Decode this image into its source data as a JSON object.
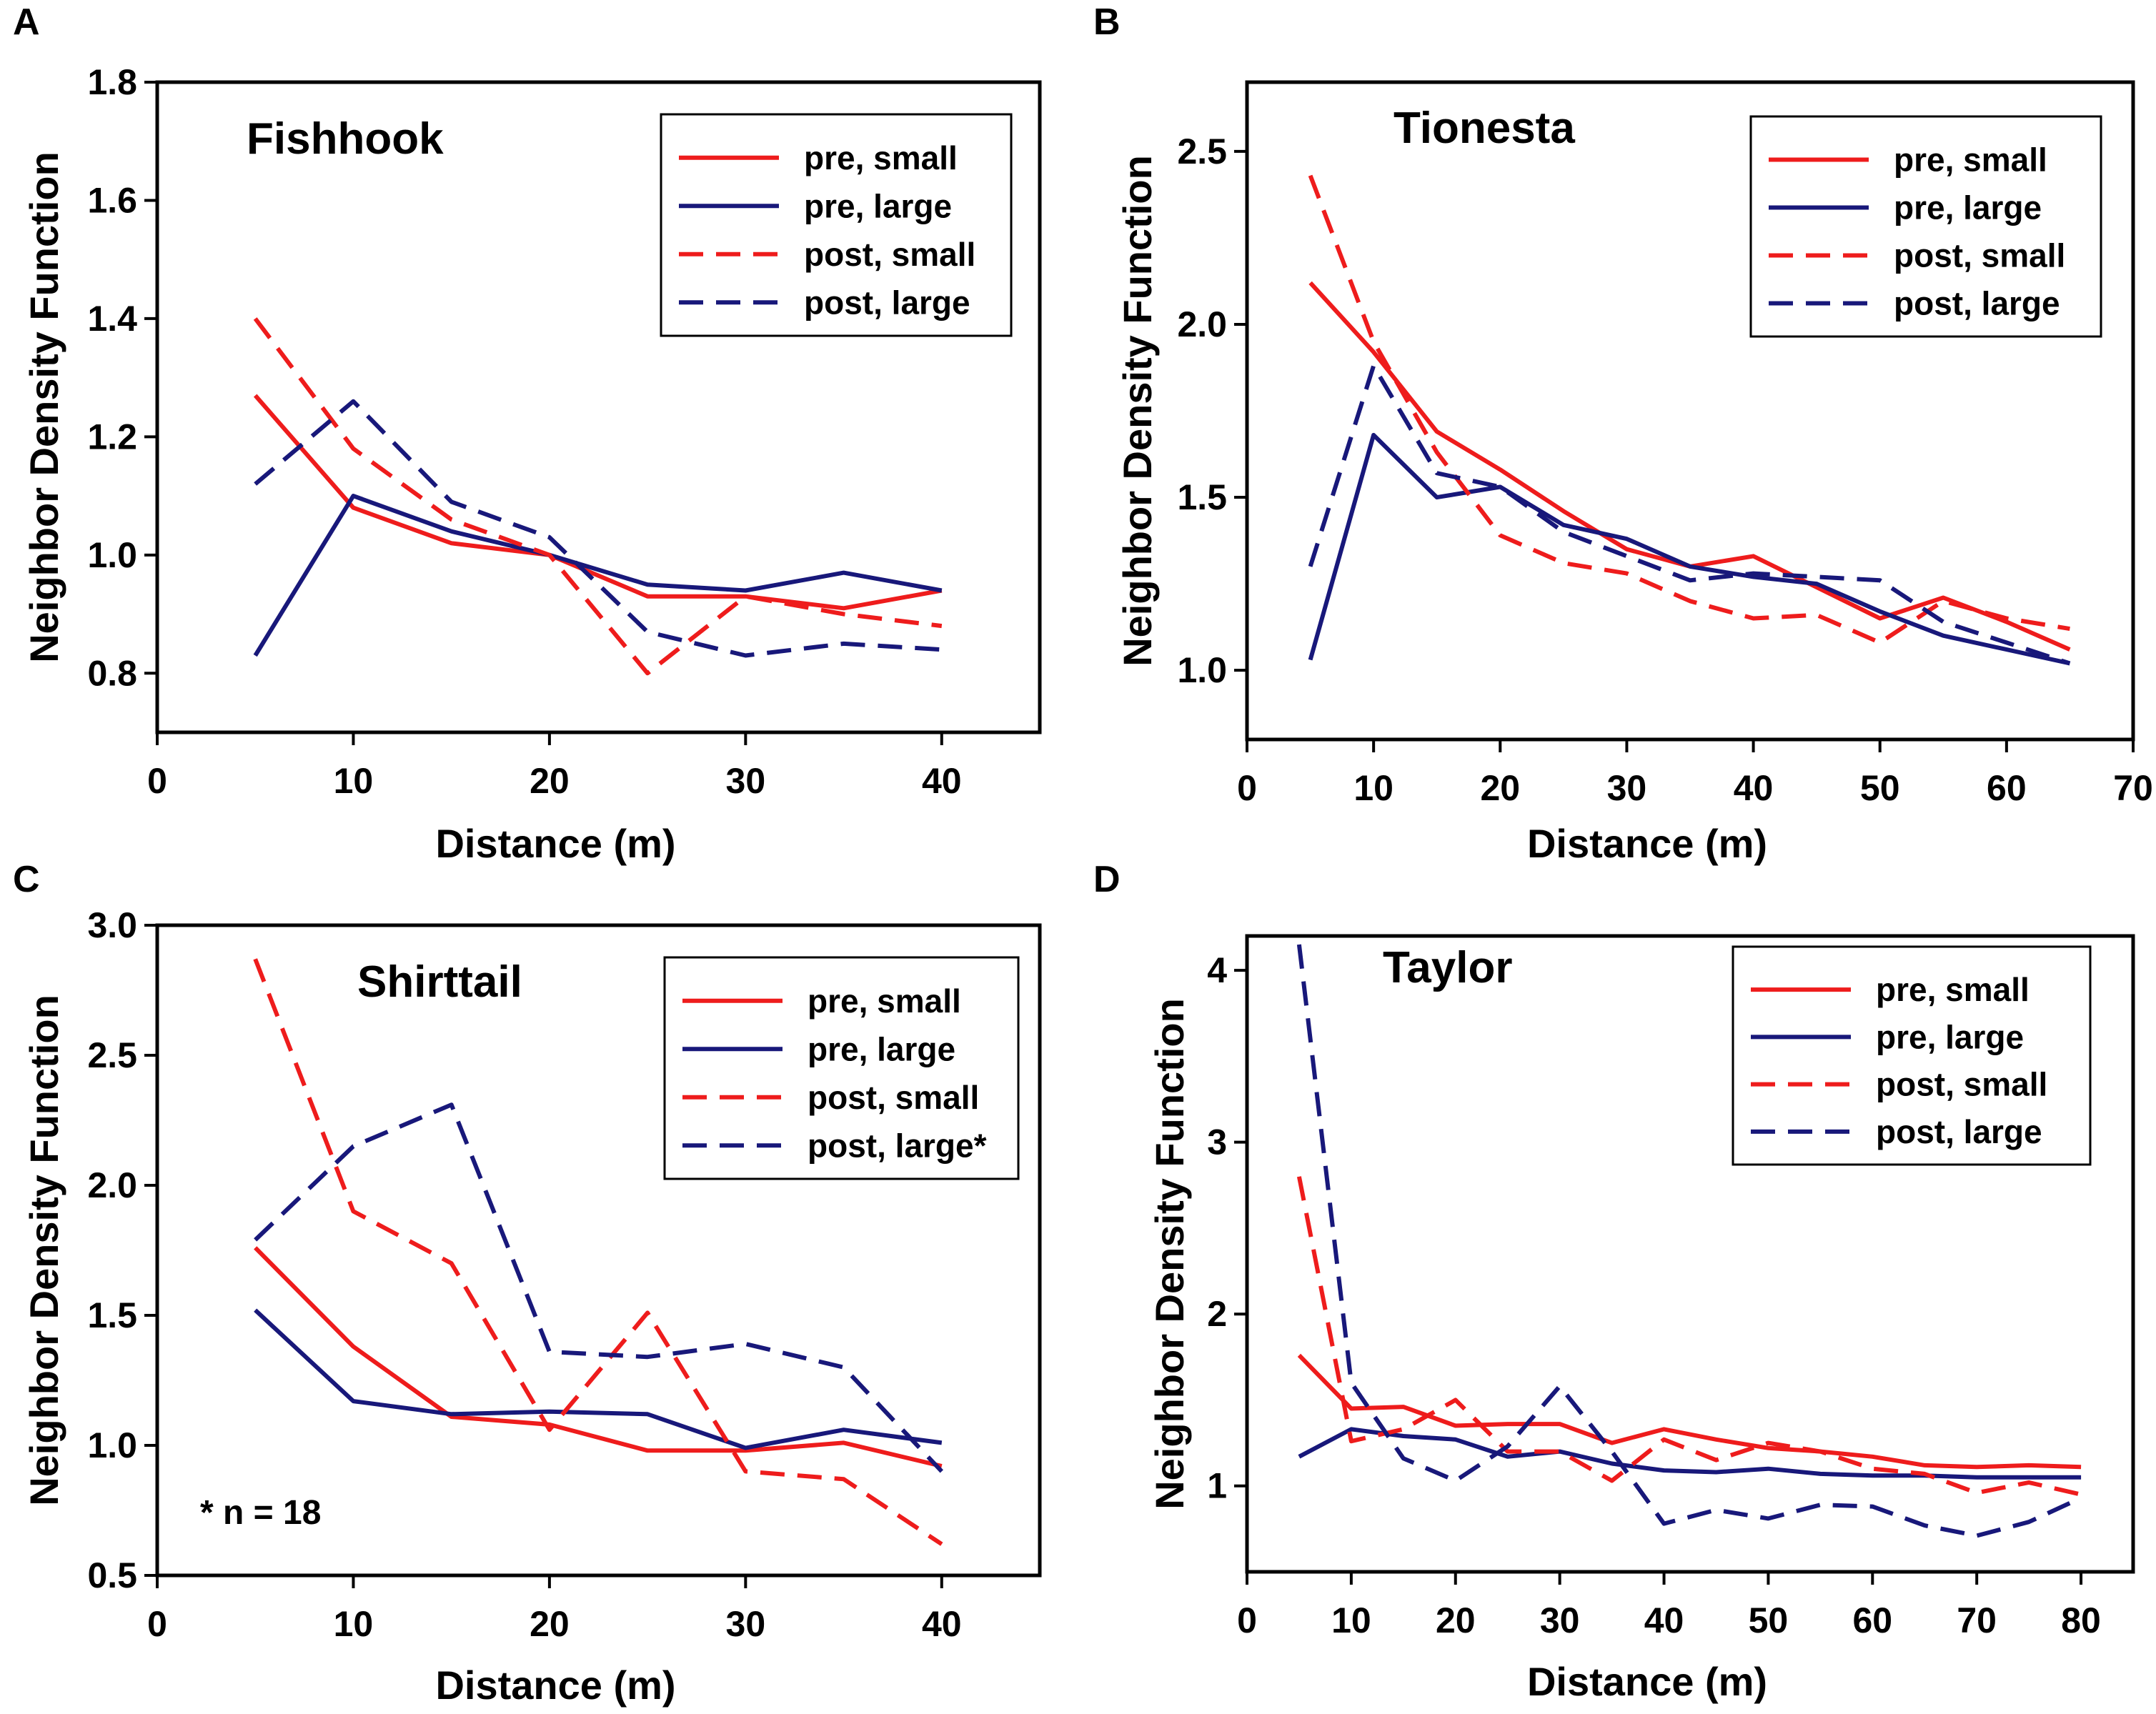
{
  "colors": {
    "red": "#ee1c1c",
    "navy": "#18187a",
    "axis": "#000000",
    "background": "#ffffff"
  },
  "chart_data": [
    {
      "type": "line",
      "panel": "A",
      "title": "Fishhook",
      "xlabel": "Distance (m)",
      "ylabel": "Neighbor Density Function",
      "xlim": [
        0,
        45
      ],
      "ylim": [
        0.7,
        1.8
      ],
      "xticks": [
        0,
        10,
        20,
        30,
        40
      ],
      "xtick_labels": [
        "0",
        "10",
        "20",
        "30",
        "40"
      ],
      "yticks": [
        0.8,
        1.0,
        1.2,
        1.4,
        1.6,
        1.8
      ],
      "ytick_labels": [
        "0.8",
        "1.0",
        "1.2",
        "1.4",
        "1.6",
        "1.8"
      ],
      "x": [
        5,
        10,
        15,
        20,
        25,
        30,
        35,
        40
      ],
      "legend_position": "top-right",
      "series": [
        {
          "name": "pre, small",
          "color": "#ee1c1c",
          "dashed": false,
          "values": [
            1.27,
            1.08,
            1.02,
            1.0,
            0.93,
            0.93,
            0.91,
            0.94
          ]
        },
        {
          "name": "pre, large",
          "color": "#18187a",
          "dashed": false,
          "values": [
            0.83,
            1.1,
            1.04,
            1.0,
            0.95,
            0.94,
            0.97,
            0.94
          ]
        },
        {
          "name": "post, small",
          "color": "#ee1c1c",
          "dashed": true,
          "values": [
            1.4,
            1.18,
            1.06,
            1.0,
            0.8,
            0.93,
            0.9,
            0.88
          ]
        },
        {
          "name": "post, large",
          "color": "#18187a",
          "dashed": true,
          "values": [
            1.12,
            1.26,
            1.09,
            1.03,
            0.87,
            0.83,
            0.85,
            0.84
          ]
        }
      ]
    },
    {
      "type": "line",
      "panel": "B",
      "title": "Tionesta",
      "xlabel": "Distance (m)",
      "ylabel": "Neighbor Density Function",
      "xlim": [
        0,
        70
      ],
      "ylim": [
        0.8,
        2.7
      ],
      "xticks": [
        0,
        10,
        20,
        30,
        40,
        50,
        60,
        70
      ],
      "xtick_labels": [
        "0",
        "10",
        "20",
        "30",
        "40",
        "50",
        "60",
        "70"
      ],
      "yticks": [
        1.0,
        1.5,
        2.0,
        2.5
      ],
      "ytick_labels": [
        "1.0",
        "1.5",
        "2.0",
        "2.5"
      ],
      "x": [
        5,
        10,
        15,
        20,
        25,
        30,
        35,
        40,
        45,
        50,
        55,
        60,
        65
      ],
      "legend_position": "top-right",
      "series": [
        {
          "name": "pre, small",
          "color": "#ee1c1c",
          "dashed": false,
          "values": [
            2.12,
            1.92,
            1.69,
            1.58,
            1.46,
            1.35,
            1.3,
            1.33,
            1.24,
            1.15,
            1.21,
            1.14,
            1.06
          ]
        },
        {
          "name": "pre, large",
          "color": "#18187a",
          "dashed": false,
          "values": [
            1.03,
            1.68,
            1.5,
            1.53,
            1.42,
            1.38,
            1.3,
            1.27,
            1.25,
            1.17,
            1.1,
            1.06,
            1.02
          ]
        },
        {
          "name": "post, small",
          "color": "#ee1c1c",
          "dashed": true,
          "values": [
            2.43,
            1.95,
            1.63,
            1.39,
            1.31,
            1.28,
            1.2,
            1.15,
            1.16,
            1.08,
            1.2,
            1.15,
            1.12
          ]
        },
        {
          "name": "post, large",
          "color": "#18187a",
          "dashed": true,
          "values": [
            1.3,
            1.88,
            1.57,
            1.53,
            1.4,
            1.33,
            1.26,
            1.28,
            1.27,
            1.26,
            1.14,
            1.08,
            1.02
          ]
        }
      ]
    },
    {
      "type": "line",
      "panel": "C",
      "title": "Shirttail",
      "xlabel": "Distance (m)",
      "ylabel": "Neighbor Density Function",
      "xlim": [
        0,
        45
      ],
      "ylim": [
        0.5,
        3.0
      ],
      "xticks": [
        0,
        10,
        20,
        30,
        40
      ],
      "xtick_labels": [
        "0",
        "10",
        "20",
        "30",
        "40"
      ],
      "yticks": [
        0.5,
        1.0,
        1.5,
        2.0,
        2.5,
        3.0
      ],
      "ytick_labels": [
        "0.5",
        "1.0",
        "1.5",
        "2.0",
        "2.5",
        "3.0"
      ],
      "x": [
        5,
        10,
        15,
        20,
        25,
        30,
        35,
        40
      ],
      "legend_position": "top-right",
      "annotation": "* n = 18",
      "series": [
        {
          "name": "pre, small",
          "color": "#ee1c1c",
          "dashed": false,
          "values": [
            1.76,
            1.38,
            1.11,
            1.08,
            0.98,
            0.98,
            1.01,
            0.92
          ]
        },
        {
          "name": "pre, large",
          "color": "#18187a",
          "dashed": false,
          "values": [
            1.52,
            1.17,
            1.12,
            1.13,
            1.12,
            0.99,
            1.06,
            1.01
          ]
        },
        {
          "name": "post, small",
          "color": "#ee1c1c",
          "dashed": true,
          "values": [
            2.87,
            1.9,
            1.7,
            1.06,
            1.51,
            0.9,
            0.87,
            0.62
          ]
        },
        {
          "name": "post, large*",
          "color": "#18187a",
          "dashed": true,
          "values": [
            1.79,
            2.15,
            2.31,
            1.36,
            1.34,
            1.39,
            1.3,
            0.9
          ]
        }
      ]
    },
    {
      "type": "line",
      "panel": "D",
      "title": "Taylor",
      "xlabel": "Distance (m)",
      "ylabel": "Neighbor Density Function",
      "xlim": [
        0,
        85
      ],
      "ylim": [
        0.5,
        4.2
      ],
      "xticks": [
        0,
        10,
        20,
        30,
        40,
        50,
        60,
        70,
        80
      ],
      "xtick_labels": [
        "0",
        "10",
        "20",
        "30",
        "40",
        "50",
        "60",
        "70",
        "80"
      ],
      "yticks": [
        1,
        2,
        3,
        4
      ],
      "ytick_labels": [
        "1",
        "2",
        "3",
        "4"
      ],
      "x": [
        5,
        10,
        15,
        20,
        25,
        30,
        35,
        40,
        45,
        50,
        55,
        60,
        65,
        70,
        75,
        80
      ],
      "legend_position": "top-right",
      "series": [
        {
          "name": "pre, small",
          "color": "#ee1c1c",
          "dashed": false,
          "values": [
            1.76,
            1.45,
            1.46,
            1.35,
            1.36,
            1.36,
            1.25,
            1.33,
            1.27,
            1.22,
            1.2,
            1.17,
            1.12,
            1.11,
            1.12,
            1.11
          ]
        },
        {
          "name": "pre, large",
          "color": "#18187a",
          "dashed": false,
          "values": [
            1.17,
            1.33,
            1.29,
            1.27,
            1.17,
            1.2,
            1.13,
            1.09,
            1.08,
            1.1,
            1.07,
            1.06,
            1.06,
            1.05,
            1.05,
            1.05
          ]
        },
        {
          "name": "post, small",
          "color": "#ee1c1c",
          "dashed": true,
          "values": [
            2.8,
            1.26,
            1.33,
            1.5,
            1.2,
            1.2,
            1.03,
            1.27,
            1.15,
            1.25,
            1.2,
            1.1,
            1.07,
            0.96,
            1.02,
            0.95
          ]
        },
        {
          "name": "post, large",
          "color": "#18187a",
          "dashed": true,
          "values": [
            4.15,
            1.6,
            1.16,
            1.03,
            1.23,
            1.58,
            1.2,
            0.78,
            0.86,
            0.81,
            0.89,
            0.88,
            0.77,
            0.71,
            0.79,
            0.93
          ]
        }
      ]
    }
  ]
}
